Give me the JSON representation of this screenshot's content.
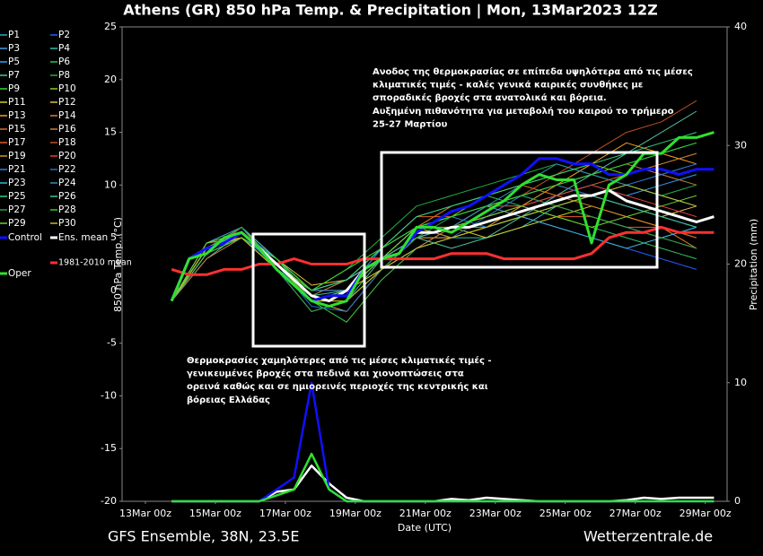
{
  "chart_data": {
    "type": "line",
    "title": "Athens  (GR)  850 hPa Temp. & Precipitation | Mon, 13Mar2023 12Z",
    "subtitle_left": "GFS Ensemble, 38N, 23.5E",
    "subtitle_right": "Wetterzentrale.de",
    "x_label": "Date (UTC)",
    "y_label": "850 hPa Temp. (°C)",
    "y2_label": "Precipitation (mm)",
    "xlim": [
      -16,
      399
    ],
    "xticks": [
      {
        "value": 0,
        "label": "13Mar 00z"
      },
      {
        "value": 48,
        "label": "15Mar 00z"
      },
      {
        "value": 96,
        "label": "17Mar 00z"
      },
      {
        "value": 144,
        "label": "19Mar 00z"
      },
      {
        "value": 192,
        "label": "21Mar 00z"
      },
      {
        "value": 240,
        "label": "23Mar 00z"
      },
      {
        "value": 288,
        "label": "25Mar 00z"
      },
      {
        "value": 336,
        "label": "27Mar 00z"
      },
      {
        "value": 384,
        "label": "29Mar 00z"
      }
    ],
    "ylim": [
      -20,
      25
    ],
    "yticks": [
      -20,
      -15,
      -10,
      -5,
      0,
      5,
      10,
      15,
      20,
      25
    ],
    "y2lim": [
      0,
      40
    ],
    "y2ticks": [
      0,
      10,
      20,
      30,
      40
    ],
    "annotations": [
      {
        "lines": [
          "Ανοδος της θερμοκρασίας σε επίπεδα υψηλότερα από τις μέσες",
          "κλιματικές τιμές - καλές γενικά καιρικές συνθήκες με",
          "σποραδικές βροχές στα ανατολικά και βόρεια.",
          "Αυξημένη πιθανότητα για μεταβολή του καιρού το τρήμερο",
          "25-27 Μαρτίου"
        ]
      },
      {
        "lines": [
          "Θερμοκρασίες χαμηλότερες από τις μέσες κλιματικές τιμές -",
          "γενικευμένες βροχές στα πεδινά και χιονοπτώσεις στα",
          "ορεινά καθώς και σε ημιορεινές περιοχές της κεντρικής και",
          "βόρειας Ελλάδας"
        ]
      }
    ],
    "x": [
      18,
      30,
      42,
      54,
      66,
      78,
      90,
      102,
      114,
      126,
      138,
      150,
      162,
      174,
      186,
      198,
      210,
      222,
      234,
      246,
      258,
      270,
      282,
      294,
      306,
      318,
      330,
      342,
      354,
      366,
      378,
      390
    ],
    "series": [
      {
        "name": "1981-2010 mean",
        "color": "#ff3030",
        "values": [
          2,
          1.5,
          1.5,
          2,
          2,
          2.5,
          2.5,
          3,
          2.5,
          2.5,
          2.5,
          3,
          3,
          3,
          3,
          3,
          3.5,
          3.5,
          3.5,
          3,
          3,
          3,
          3,
          3,
          3.5,
          5,
          5.5,
          5.5,
          6,
          5.5,
          5.5,
          5.5
        ]
      },
      {
        "name": "Ens. mean",
        "color": "#ffffff",
        "values": [
          -1,
          3,
          4,
          4.5,
          5.5,
          4,
          2.5,
          1,
          -0.5,
          -1,
          0,
          2,
          3,
          3.5,
          5.5,
          5.5,
          6,
          6,
          6.5,
          7,
          7.5,
          8,
          8.5,
          9,
          9,
          9.5,
          8.5,
          8,
          7.5,
          7,
          6.5,
          7
        ],
        "precip": [
          0,
          0,
          0,
          0,
          0,
          0,
          0.8,
          1,
          3,
          1.5,
          0.3,
          0,
          0,
          0,
          0,
          0,
          0.2,
          0.1,
          0.3,
          0.2,
          0.1,
          0,
          0,
          0,
          0,
          0,
          0.1,
          0.3,
          0.2,
          0.3,
          0.3,
          0.3
        ]
      },
      {
        "name": "Control",
        "color": "#1010ff",
        "values": [
          -1,
          3,
          4,
          4.5,
          5.5,
          4,
          2,
          0.5,
          -1,
          -0.5,
          -0.5,
          2,
          3,
          3.5,
          5.5,
          6.5,
          7.5,
          8,
          9,
          10,
          11,
          12.5,
          12.5,
          12,
          12,
          11,
          11,
          11.5,
          11.5,
          11,
          11.5,
          11.5
        ],
        "precip": [
          0,
          0,
          0,
          0,
          0,
          0,
          1,
          2,
          10,
          1,
          0,
          0,
          0,
          0,
          0,
          0,
          0,
          0,
          0,
          0,
          0,
          0,
          0,
          0,
          0,
          0,
          0,
          0,
          0,
          0,
          0,
          0
        ]
      },
      {
        "name": "Oper",
        "color": "#30e030",
        "values": [
          -1,
          3,
          3.5,
          5,
          5.5,
          4,
          2,
          0.5,
          -1,
          -1.5,
          -1,
          2,
          3,
          3.5,
          6,
          6,
          5.5,
          6.5,
          7.5,
          8.5,
          10,
          11,
          10.5,
          10.5,
          4.5,
          10,
          11,
          13,
          13,
          14.5,
          14.5,
          15
        ],
        "precip": [
          0,
          0,
          0,
          0,
          0,
          0,
          0.5,
          1,
          4,
          1,
          0,
          0,
          0,
          0,
          0,
          0,
          0,
          0,
          0,
          0,
          0,
          0,
          0,
          0,
          0,
          0,
          0,
          0,
          0,
          0,
          0,
          0
        ]
      }
    ],
    "members": {
      "x": [
        18,
        42,
        66,
        90,
        114,
        138,
        162,
        186,
        210,
        234,
        258,
        282,
        306,
        330,
        354,
        378
      ],
      "series": [
        {
          "name": "P1",
          "color": "#20b0c0",
          "values": [
            -1,
            4,
            5.5,
            2,
            -1,
            0,
            3,
            6,
            7,
            8,
            9,
            10,
            11,
            12,
            13,
            14
          ]
        },
        {
          "name": "P2",
          "color": "#2060ff",
          "values": [
            -1,
            4,
            5,
            3,
            0,
            1,
            3,
            5,
            5,
            6,
            7,
            6,
            5,
            4,
            3,
            2
          ]
        },
        {
          "name": "P3",
          "color": "#40a0e0",
          "values": [
            -1,
            3.5,
            6,
            2.5,
            -1,
            -2,
            2,
            5,
            6,
            8,
            9,
            8,
            7,
            6,
            5,
            6
          ]
        },
        {
          "name": "P4",
          "color": "#30c0b0",
          "values": [
            -1,
            4,
            5.5,
            3,
            0,
            0,
            4,
            6,
            5,
            5,
            6,
            8,
            9,
            10,
            9,
            8
          ]
        },
        {
          "name": "P5",
          "color": "#30a0ff",
          "values": [
            -1,
            4.5,
            5,
            2,
            -2,
            -1,
            2,
            4,
            6,
            7,
            8,
            9,
            10,
            9,
            10,
            11
          ]
        },
        {
          "name": "P6",
          "color": "#30c060",
          "values": [
            -1,
            4,
            6,
            3,
            -0.5,
            1,
            4,
            7,
            8,
            9,
            8,
            7,
            6,
            5,
            4,
            3
          ]
        },
        {
          "name": "P7",
          "color": "#50c0a0",
          "values": [
            -1,
            3,
            5.5,
            2.5,
            -1,
            -1,
            3,
            5,
            4,
            5,
            7,
            9,
            11,
            13,
            15,
            17
          ]
        },
        {
          "name": "P8",
          "color": "#20b040",
          "values": [
            -1,
            4,
            5,
            2,
            0,
            2,
            5,
            8,
            9,
            10,
            11,
            12,
            11,
            10,
            9,
            10
          ]
        },
        {
          "name": "P9",
          "color": "#40d040",
          "values": [
            -1,
            4,
            5.5,
            3,
            -1,
            -3,
            1,
            4,
            5,
            6,
            7,
            8,
            9,
            8,
            7,
            6
          ]
        },
        {
          "name": "P10",
          "color": "#80d020",
          "values": [
            -1,
            4,
            6,
            2.5,
            0,
            1,
            3,
            6,
            7,
            9,
            10,
            11,
            12,
            11,
            12,
            13
          ]
        },
        {
          "name": "P11",
          "color": "#d0d020",
          "values": [
            -1,
            3.5,
            5,
            2,
            -1,
            0,
            2,
            5,
            6,
            5,
            6,
            7,
            8,
            7,
            6,
            5
          ]
        },
        {
          "name": "P12",
          "color": "#e0c040",
          "values": [
            -1,
            4,
            5.5,
            3,
            0.5,
            1,
            4,
            6,
            7,
            8,
            9,
            10,
            9,
            8,
            7,
            8
          ]
        },
        {
          "name": "P13",
          "color": "#f0a020",
          "values": [
            -1,
            4,
            6,
            2,
            -1,
            -2,
            2,
            5,
            5,
            6,
            8,
            10,
            12,
            14,
            13,
            12
          ]
        },
        {
          "name": "P14",
          "color": "#e08020",
          "values": [
            -1,
            4.5,
            5,
            3,
            0,
            0,
            3,
            6,
            8,
            9,
            10,
            9,
            8,
            7,
            6,
            4
          ]
        },
        {
          "name": "P15",
          "color": "#d07030",
          "values": [
            -1,
            4,
            5.5,
            2.5,
            -0.5,
            1,
            3,
            5,
            6,
            7,
            8,
            9,
            10,
            11,
            12,
            13
          ]
        },
        {
          "name": "P16",
          "color": "#c08040",
          "values": [
            -1,
            3,
            5,
            2,
            -2,
            -1,
            2,
            4,
            6,
            8,
            9,
            10,
            11,
            12,
            11,
            10
          ]
        },
        {
          "name": "P17",
          "color": "#e06020",
          "values": [
            -1,
            4,
            6,
            3,
            0,
            2,
            4,
            7,
            7,
            8,
            8,
            7,
            7,
            6,
            6,
            5
          ]
        },
        {
          "name": "P18",
          "color": "#c05020",
          "values": [
            -1,
            4,
            5.5,
            2.5,
            -1,
            0,
            3,
            5,
            6,
            7,
            9,
            11,
            13,
            15,
            16,
            18
          ]
        },
        {
          "name": "P19",
          "color": "#d09030",
          "values": [
            -1,
            4,
            5,
            3,
            0,
            1,
            3,
            6,
            5,
            6,
            7,
            8,
            7,
            6,
            5,
            4
          ]
        },
        {
          "name": "P20",
          "color": "#e04040",
          "values": [
            -1,
            3.5,
            6,
            2,
            -1,
            -1,
            2,
            5,
            6,
            7,
            8,
            9,
            10,
            9,
            8,
            7
          ]
        },
        {
          "name": "P21",
          "color": "#3080e0",
          "values": [
            -1,
            4,
            5.5,
            3,
            0,
            0,
            4,
            6,
            7,
            6,
            7,
            8,
            9,
            10,
            11,
            12
          ]
        },
        {
          "name": "P22",
          "color": "#2070c0",
          "values": [
            -1,
            4,
            5,
            2.5,
            -1.5,
            -2,
            2,
            4,
            5,
            7,
            9,
            10,
            9,
            8,
            7,
            6
          ]
        },
        {
          "name": "P23",
          "color": "#40b0d0",
          "values": [
            -1,
            4.5,
            6,
            3,
            0,
            1,
            3,
            6,
            7,
            8,
            7,
            6,
            5,
            4,
            5,
            6
          ]
        },
        {
          "name": "P24",
          "color": "#3090b0",
          "values": [
            -1,
            4,
            5.5,
            2,
            -1,
            0,
            3,
            5,
            6,
            8,
            10,
            12,
            11,
            10,
            9,
            8
          ]
        },
        {
          "name": "P25",
          "color": "#30d080",
          "values": [
            -1,
            3.5,
            5,
            3,
            0,
            1,
            4,
            7,
            8,
            9,
            10,
            11,
            12,
            13,
            14,
            15
          ]
        },
        {
          "name": "P26",
          "color": "#40c0a0",
          "values": [
            -1,
            4,
            5.5,
            2.5,
            -0.5,
            0,
            3,
            5,
            6,
            6,
            7,
            8,
            9,
            8,
            7,
            6
          ]
        },
        {
          "name": "P27",
          "color": "#20a050",
          "values": [
            -1,
            4,
            6,
            2,
            -2,
            -1,
            2,
            5,
            7,
            8,
            9,
            8,
            7,
            6,
            5,
            4
          ]
        },
        {
          "name": "P28",
          "color": "#30d030",
          "values": [
            -1,
            4,
            5,
            3,
            0,
            2,
            4,
            6,
            7,
            8,
            9,
            10,
            11,
            12,
            13,
            14
          ]
        },
        {
          "name": "P29",
          "color": "#70d030",
          "values": [
            -1,
            4.5,
            5.5,
            2.5,
            -1,
            0,
            3,
            6,
            6,
            7,
            8,
            7,
            6,
            7,
            8,
            9
          ]
        },
        {
          "name": "P30",
          "color": "#c0c020",
          "values": [
            -1,
            4,
            5,
            2,
            -1,
            -1,
            2,
            4,
            5,
            6,
            7,
            8,
            9,
            10,
            9,
            8
          ]
        }
      ]
    }
  }
}
